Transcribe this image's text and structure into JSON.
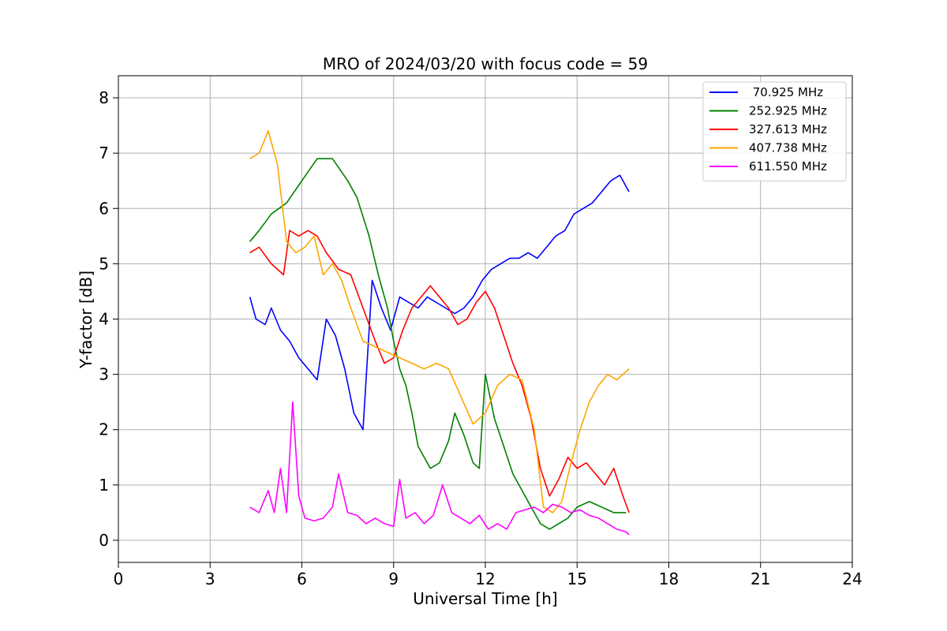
{
  "chart_data": {
    "type": "line",
    "title": "MRO of 2024/03/20 with focus code = 59",
    "xlabel": "Universal Time [h]",
    "ylabel": "Y-factor [dB]",
    "xlim": [
      0,
      24
    ],
    "ylim": [
      -0.4,
      8.4
    ],
    "xticks": [
      0,
      3,
      6,
      9,
      12,
      15,
      18,
      21,
      24
    ],
    "yticks": [
      0,
      1,
      2,
      3,
      4,
      5,
      6,
      7,
      8
    ],
    "grid": true,
    "legend_position": "top-right",
    "series": [
      {
        "name": " 70.925 MHz",
        "color": "#0000ff",
        "x": [
          4.3,
          4.5,
          4.8,
          5.0,
          5.3,
          5.6,
          5.9,
          6.2,
          6.5,
          6.8,
          7.1,
          7.4,
          7.7,
          8.0,
          8.3,
          8.6,
          8.9,
          9.2,
          9.5,
          9.8,
          10.1,
          10.4,
          10.7,
          11.0,
          11.3,
          11.6,
          11.9,
          12.2,
          12.5,
          12.8,
          13.1,
          13.4,
          13.7,
          14.0,
          14.3,
          14.6,
          14.9,
          15.2,
          15.5,
          15.8,
          16.1,
          16.4,
          16.7
        ],
        "y": [
          4.4,
          4.0,
          3.9,
          4.2,
          3.8,
          3.6,
          3.3,
          3.1,
          2.9,
          4.0,
          3.7,
          3.1,
          2.3,
          2.0,
          4.7,
          4.2,
          3.8,
          4.4,
          4.3,
          4.2,
          4.4,
          4.3,
          4.2,
          4.1,
          4.2,
          4.4,
          4.7,
          4.9,
          5.0,
          5.1,
          5.1,
          5.2,
          5.1,
          5.3,
          5.5,
          5.6,
          5.9,
          6.0,
          6.1,
          6.3,
          6.5,
          6.6,
          6.3
        ]
      },
      {
        "name": "252.925 MHz",
        "color": "#008000",
        "x": [
          4.3,
          4.6,
          5.0,
          5.5,
          6.0,
          6.5,
          7.0,
          7.5,
          7.8,
          8.2,
          8.5,
          8.8,
          9.0,
          9.2,
          9.4,
          9.6,
          9.8,
          10.0,
          10.2,
          10.5,
          10.8,
          11.0,
          11.3,
          11.6,
          11.8,
          12.0,
          12.3,
          12.6,
          12.9,
          13.2,
          13.5,
          13.8,
          14.1,
          14.4,
          14.7,
          15.0,
          15.4,
          15.8,
          16.2,
          16.6
        ],
        "y": [
          5.4,
          5.6,
          5.9,
          6.1,
          6.5,
          6.9,
          6.9,
          6.5,
          6.2,
          5.5,
          4.8,
          4.2,
          3.6,
          3.1,
          2.8,
          2.3,
          1.7,
          1.5,
          1.3,
          1.4,
          1.8,
          2.3,
          1.9,
          1.4,
          1.3,
          3.0,
          2.2,
          1.7,
          1.2,
          0.9,
          0.6,
          0.3,
          0.2,
          0.3,
          0.4,
          0.6,
          0.7,
          0.6,
          0.5,
          0.5
        ]
      },
      {
        "name": "327.613 MHz",
        "color": "#ff0000",
        "x": [
          4.3,
          4.6,
          5.0,
          5.4,
          5.6,
          5.9,
          6.2,
          6.5,
          6.8,
          7.2,
          7.6,
          8.0,
          8.4,
          8.7,
          9.0,
          9.3,
          9.6,
          9.9,
          10.2,
          10.5,
          10.8,
          11.1,
          11.4,
          11.7,
          12.0,
          12.3,
          12.6,
          12.9,
          13.2,
          13.5,
          13.8,
          14.1,
          14.4,
          14.7,
          15.0,
          15.3,
          15.6,
          15.9,
          16.2,
          16.5,
          16.7
        ],
        "y": [
          5.2,
          5.3,
          5.0,
          4.8,
          5.6,
          5.5,
          5.6,
          5.5,
          5.2,
          4.9,
          4.8,
          4.2,
          3.6,
          3.2,
          3.3,
          3.8,
          4.2,
          4.4,
          4.6,
          4.4,
          4.2,
          3.9,
          4.0,
          4.3,
          4.5,
          4.2,
          3.7,
          3.2,
          2.8,
          2.2,
          1.3,
          0.8,
          1.1,
          1.5,
          1.3,
          1.4,
          1.2,
          1.0,
          1.3,
          0.8,
          0.5
        ]
      },
      {
        "name": "407.738 MHz",
        "color": "#ffa500",
        "x": [
          4.3,
          4.6,
          4.9,
          5.2,
          5.5,
          5.8,
          6.1,
          6.4,
          6.7,
          7.0,
          7.3,
          7.6,
          8.0,
          8.4,
          8.8,
          9.2,
          9.6,
          10.0,
          10.4,
          10.8,
          11.2,
          11.6,
          12.0,
          12.4,
          12.8,
          13.2,
          13.6,
          13.9,
          14.2,
          14.5,
          14.8,
          15.1,
          15.4,
          15.7,
          16.0,
          16.3,
          16.7
        ],
        "y": [
          6.9,
          7.0,
          7.4,
          6.8,
          5.4,
          5.2,
          5.3,
          5.5,
          4.8,
          5.0,
          4.7,
          4.2,
          3.6,
          3.5,
          3.4,
          3.3,
          3.2,
          3.1,
          3.2,
          3.1,
          2.6,
          2.1,
          2.3,
          2.8,
          3.0,
          2.9,
          2.0,
          0.6,
          0.5,
          0.7,
          1.4,
          2.0,
          2.5,
          2.8,
          3.0,
          2.9,
          3.1
        ]
      },
      {
        "name": "611.550 MHz",
        "color": "#ff00ff",
        "x": [
          4.3,
          4.6,
          4.9,
          5.1,
          5.3,
          5.5,
          5.7,
          5.9,
          6.1,
          6.4,
          6.7,
          7.0,
          7.2,
          7.5,
          7.8,
          8.1,
          8.4,
          8.7,
          9.0,
          9.2,
          9.4,
          9.7,
          10.0,
          10.3,
          10.6,
          10.9,
          11.2,
          11.5,
          11.8,
          12.1,
          12.4,
          12.7,
          13.0,
          13.3,
          13.6,
          13.9,
          14.2,
          14.5,
          14.8,
          15.1,
          15.4,
          15.7,
          16.0,
          16.3,
          16.6,
          16.7
        ],
        "y": [
          0.6,
          0.5,
          0.9,
          0.5,
          1.3,
          0.5,
          2.5,
          0.8,
          0.4,
          0.35,
          0.4,
          0.6,
          1.2,
          0.5,
          0.45,
          0.3,
          0.4,
          0.3,
          0.25,
          1.1,
          0.4,
          0.5,
          0.3,
          0.45,
          1.0,
          0.5,
          0.4,
          0.3,
          0.45,
          0.2,
          0.3,
          0.2,
          0.5,
          0.55,
          0.6,
          0.5,
          0.65,
          0.6,
          0.5,
          0.55,
          0.45,
          0.4,
          0.3,
          0.2,
          0.15,
          0.1
        ]
      }
    ]
  }
}
